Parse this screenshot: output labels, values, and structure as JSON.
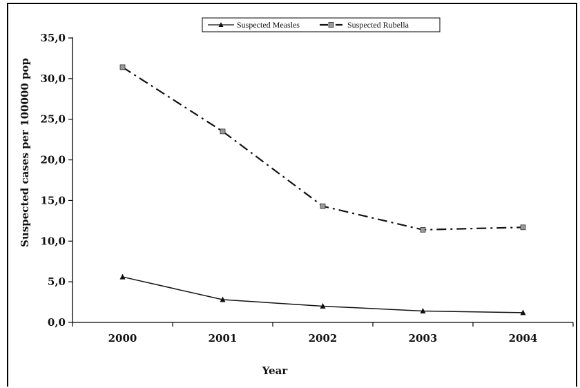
{
  "chart_data": {
    "type": "line",
    "categories": [
      "2000",
      "2001",
      "2002",
      "2003",
      "2004"
    ],
    "series": [
      {
        "name": "Suspected Measles",
        "values": [
          5.6,
          2.8,
          2.0,
          1.4,
          1.2
        ],
        "line_style": "solid",
        "marker": "triangle",
        "color": "#111111"
      },
      {
        "name": "Suspected Rubella",
        "values": [
          31.4,
          23.5,
          14.3,
          11.4,
          11.7
        ],
        "line_style": "dash-dot",
        "marker": "square",
        "color": "#111111",
        "marker_fill": "#9a9a9a"
      }
    ],
    "title": "",
    "xlabel": "Year",
    "ylabel": "Suspected cases per 100000 pop",
    "ylim": [
      0,
      35
    ],
    "yticks": [
      "0,0",
      "5,0",
      "10,0",
      "15,0",
      "20,0",
      "25,0",
      "30,0",
      "35,0"
    ],
    "grid": false,
    "legend_position": "top-center"
  }
}
